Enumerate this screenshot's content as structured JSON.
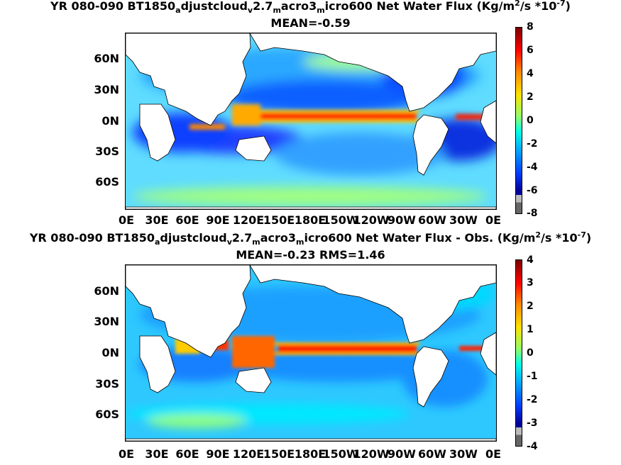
{
  "panel1": {
    "title_parts": [
      "YR 080-090 BT1850",
      "a",
      "djustcloud",
      "v",
      "2.7",
      "m",
      "acro3",
      "m",
      "icro600  Net Water Flux (Kg/m",
      "2",
      "/s *10",
      "-7",
      ")"
    ],
    "subtitle": "MEAN=-0.59",
    "colorbar_ticks": [
      "8",
      "6",
      "4",
      "2",
      "0",
      "-2",
      "-4",
      "-6",
      "-8"
    ]
  },
  "panel2": {
    "title_parts": [
      "YR 080-090 BT1850",
      "a",
      "djustcloud",
      "v",
      "2.7",
      "m",
      "acro3",
      "m",
      "icro600  Net Water Flux - Obs. (Kg/m",
      "2",
      "/s *10",
      "-7",
      ")"
    ],
    "subtitle": "MEAN=-0.23 RMS=1.46",
    "colorbar_ticks": [
      "4",
      "3",
      "2",
      "1",
      "0",
      "-1",
      "-2",
      "-3",
      "-4"
    ]
  },
  "lat_ticks": [
    "60N",
    "30N",
    "0N",
    "30S",
    "60S"
  ],
  "lon_ticks": [
    "0E",
    "30E",
    "60E",
    "90E",
    "120E",
    "150E",
    "180E",
    "150W",
    "120W",
    "90W",
    "60W",
    "30W",
    "0E"
  ],
  "colors": {
    "ocean_base": "#55d8ff",
    "land": "#ffffff",
    "extremes": [
      "#7a0000",
      "#ff0000",
      "#ff8a00",
      "#ffe100",
      "#8fff6a",
      "#00ffe6",
      "#00a8ff",
      "#0040ff",
      "#00009a"
    ],
    "below_range": [
      "#bbbbbb",
      "#666666"
    ]
  }
}
